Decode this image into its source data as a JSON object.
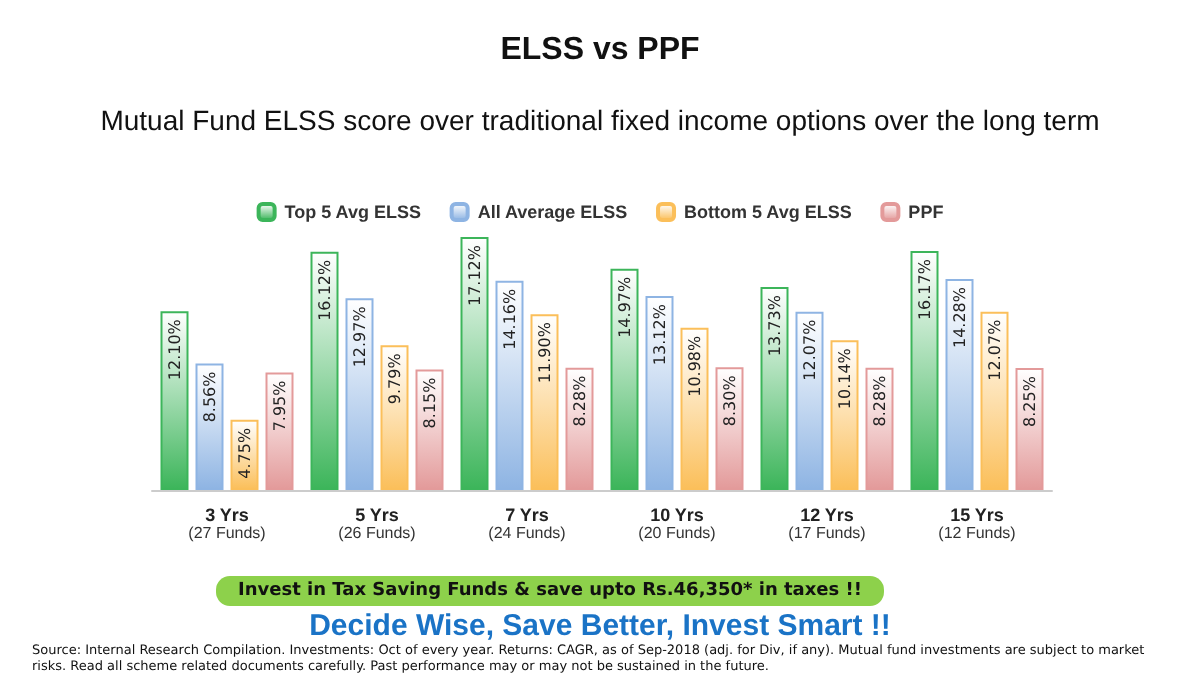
{
  "chart_data": {
    "type": "bar",
    "title": "ELSS vs PPF",
    "subtitle": "Mutual Fund ELSS score over traditional fixed income options over the long term",
    "categories": [
      "3 Yrs\n(27 Funds)",
      "5 Yrs\n(26 Funds)",
      "7 Yrs\n(24 Funds)",
      "10 Yrs\n(20 Funds)",
      "12 Yrs\n(17 Funds)",
      "15 Yrs\n(12 Funds)"
    ],
    "series": [
      {
        "name": "Top 5 Avg ELSS",
        "color": "#3cb55a",
        "values": [
          12.1,
          16.12,
          17.12,
          14.97,
          13.73,
          16.17
        ],
        "value_labels": [
          "12.10%",
          "16.12%",
          "17.12%",
          "14.97%",
          "13.73%",
          "16.17%"
        ]
      },
      {
        "name": "All Average ELSS",
        "color": "#8eb4e3",
        "values": [
          8.56,
          12.97,
          14.16,
          13.12,
          12.07,
          14.28
        ],
        "value_labels": [
          "8.56%",
          "12.97%",
          "14.16%",
          "13.12%",
          "12.07%",
          "14.28%"
        ]
      },
      {
        "name": "Bottom 5 Avg ELSS",
        "color": "#fbbf5a",
        "values": [
          4.75,
          9.79,
          11.9,
          10.98,
          10.14,
          12.07
        ],
        "value_labels": [
          "4.75%",
          "9.79%",
          "11.90%",
          "10.98%",
          "10.14%",
          "12.07%"
        ]
      },
      {
        "name": "PPF",
        "color": "#e39a9a",
        "values": [
          7.95,
          8.15,
          8.28,
          8.3,
          8.28,
          8.25
        ],
        "value_labels": [
          "7.95%",
          "8.15%",
          "8.28%",
          "8.30%",
          "8.28%",
          "8.25%"
        ]
      }
    ],
    "legend": "top",
    "grid": false,
    "annotations": [
      "Invest in Tax Saving Funds & save upto Rs.46,350* in taxes !!",
      "Decide Wise, Save Better, Invest Smart !!",
      "Source: Internal Research Compilation. Investments: Oct of every year. Returns: CAGR, as of Sep-2018 (adj. for Div, if any). Mutual fund investments are subject to market risks. Read all scheme related documents carefully. Past performance may or may not be sustained in the future."
    ]
  }
}
